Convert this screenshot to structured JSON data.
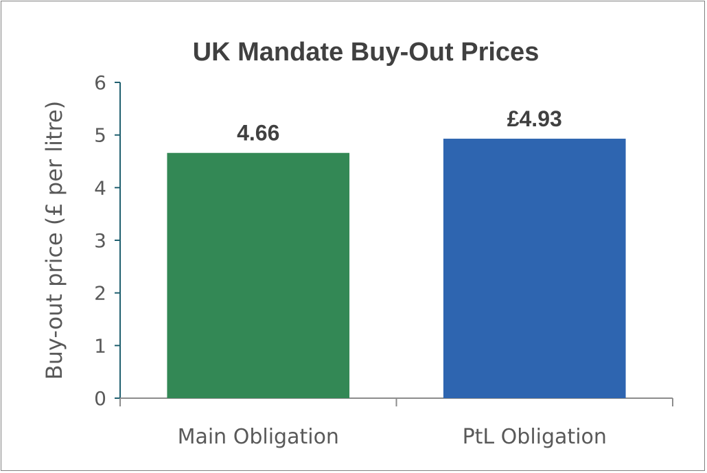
{
  "chart_data": {
    "type": "bar",
    "title": "UK Mandate Buy-Out Prices",
    "xlabel": "",
    "ylabel": "Buy-out price (£ per litre)",
    "categories": [
      "Main Obligation",
      "PtL Obligation"
    ],
    "values": [
      4.66,
      4.93
    ],
    "data_labels": [
      "4.66",
      "£4.93"
    ],
    "bar_colors": [
      "#338855",
      "#2e65b0"
    ],
    "ylim": [
      0,
      6
    ],
    "yticks": [
      0,
      1,
      2,
      3,
      4,
      5,
      6
    ],
    "grid": false,
    "legend": "none"
  }
}
